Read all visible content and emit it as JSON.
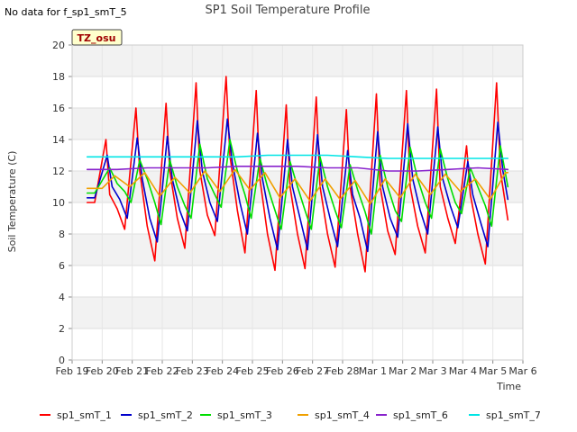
{
  "no_data_note": "No data for f_sp1_smT_5",
  "chart_data": {
    "type": "line",
    "title": "SP1 Soil Temperature Profile",
    "xlabel": "Time",
    "ylabel": "Soil Temperature (C)",
    "badge": "TZ_osu",
    "ylim": [
      0,
      20
    ],
    "yticks": [
      0,
      2,
      4,
      6,
      8,
      10,
      12,
      14,
      16,
      18,
      20
    ],
    "xlim": [
      "Feb 19",
      "Mar 6"
    ],
    "xtick_labels": [
      "Feb 19",
      "Feb 20",
      "Feb 21",
      "Feb 22",
      "Feb 23",
      "Feb 24",
      "Feb 25",
      "Feb 26",
      "Feb 27",
      "Feb 28",
      "Mar 1",
      "Mar 2",
      "Mar 3",
      "Mar 4",
      "Mar 5",
      "Mar 6"
    ],
    "grid": true,
    "legend_position": "bottom",
    "series": [
      {
        "name": "sp1_smT_1",
        "color": "#ff0000",
        "x": [
          "Feb 19 12:00",
          "Feb 19 18:00",
          "Feb 20 03:00",
          "Feb 20 06:00",
          "Feb 20 12:00",
          "Feb 20 18:00",
          "Feb 21 03:00",
          "Feb 21 06:00",
          "Feb 21 12:00",
          "Feb 21 18:00",
          "Feb 22 03:00",
          "Feb 22 06:00",
          "Feb 22 12:00",
          "Feb 22 18:00",
          "Feb 23 03:00",
          "Feb 23 06:00",
          "Feb 23 12:00",
          "Feb 23 18:00",
          "Feb 24 03:00",
          "Feb 24 06:00",
          "Feb 24 12:00",
          "Feb 24 18:00",
          "Feb 25 03:00",
          "Feb 25 06:00",
          "Feb 25 12:00",
          "Feb 25 18:00",
          "Feb 26 03:00",
          "Feb 26 06:00",
          "Feb 26 12:00",
          "Feb 26 18:00",
          "Feb 27 03:00",
          "Feb 27 06:00",
          "Feb 27 12:00",
          "Feb 27 18:00",
          "Feb 28 03:00",
          "Feb 28 06:00",
          "Feb 28 12:00",
          "Feb 28 18:00",
          "Mar 1 03:00",
          "Mar 1 06:00",
          "Mar 1 12:00",
          "Mar 1 18:00",
          "Mar 2 03:00",
          "Mar 2 06:00",
          "Mar 2 12:00",
          "Mar 2 18:00",
          "Mar 3 03:00",
          "Mar 3 06:00",
          "Mar 3 12:00",
          "Mar 3 18:00",
          "Mar 4 03:00",
          "Mar 4 06:00",
          "Mar 4 12:00",
          "Mar 4 18:00",
          "Mar 5 03:00",
          "Mar 5 06:00",
          "Mar 5 12:00"
        ],
        "y": [
          10.0,
          10.0,
          14.0,
          10.5,
          9.6,
          8.3,
          16.0,
          12.0,
          8.5,
          6.3,
          16.3,
          12.0,
          9.0,
          7.1,
          17.6,
          12.0,
          9.2,
          7.9,
          18.0,
          13.0,
          9.5,
          6.8,
          17.1,
          11.5,
          8.0,
          5.7,
          16.2,
          11.0,
          8.0,
          5.8,
          16.7,
          11.0,
          8.0,
          5.9,
          15.9,
          11.0,
          8.0,
          5.6,
          16.9,
          11.0,
          8.2,
          6.7,
          17.1,
          11.0,
          8.5,
          6.8,
          17.2,
          11.0,
          9.0,
          7.4,
          13.6,
          10.5,
          8.0,
          6.1,
          17.6,
          12.0,
          8.9
        ]
      },
      {
        "name": "sp1_smT_2",
        "color": "#0000cc",
        "x": [
          "Feb 19 12:00",
          "Feb 19 18:00",
          "Feb 20 04:00",
          "Feb 20 08:00",
          "Feb 20 14:00",
          "Feb 20 20:00",
          "Feb 21 04:00",
          "Feb 21 08:00",
          "Feb 21 14:00",
          "Feb 21 20:00",
          "Feb 22 04:00",
          "Feb 22 08:00",
          "Feb 22 14:00",
          "Feb 22 20:00",
          "Feb 23 04:00",
          "Feb 23 08:00",
          "Feb 23 14:00",
          "Feb 23 20:00",
          "Feb 24 04:00",
          "Feb 24 08:00",
          "Feb 24 14:00",
          "Feb 24 20:00",
          "Feb 25 04:00",
          "Feb 25 08:00",
          "Feb 25 14:00",
          "Feb 25 20:00",
          "Feb 26 04:00",
          "Feb 26 08:00",
          "Feb 26 14:00",
          "Feb 26 20:00",
          "Feb 27 04:00",
          "Feb 27 08:00",
          "Feb 27 14:00",
          "Feb 27 20:00",
          "Feb 28 04:00",
          "Feb 28 08:00",
          "Feb 28 14:00",
          "Feb 28 20:00",
          "Mar 1 04:00",
          "Mar 1 08:00",
          "Mar 1 14:00",
          "Mar 1 20:00",
          "Mar 2 04:00",
          "Mar 2 08:00",
          "Mar 2 14:00",
          "Mar 2 20:00",
          "Mar 3 04:00",
          "Mar 3 08:00",
          "Mar 3 14:00",
          "Mar 3 20:00",
          "Mar 4 04:00",
          "Mar 4 08:00",
          "Mar 4 14:00",
          "Mar 4 20:00",
          "Mar 5 04:00",
          "Mar 5 08:00",
          "Mar 5 12:00"
        ],
        "y": [
          10.3,
          10.3,
          13.0,
          11.0,
          10.2,
          9.0,
          14.1,
          11.5,
          9.0,
          7.5,
          14.2,
          11.5,
          9.5,
          8.2,
          15.2,
          12.0,
          10.0,
          8.8,
          15.3,
          12.5,
          10.0,
          8.0,
          14.4,
          11.5,
          9.0,
          7.0,
          14.0,
          11.0,
          9.0,
          7.0,
          14.3,
          11.0,
          9.0,
          7.2,
          13.3,
          10.5,
          9.0,
          6.9,
          14.5,
          11.0,
          9.0,
          7.8,
          15.0,
          11.5,
          9.5,
          8.0,
          14.8,
          11.5,
          9.8,
          8.4,
          12.6,
          10.5,
          8.8,
          7.2,
          15.1,
          12.0,
          10.2
        ]
      },
      {
        "name": "sp1_smT_3",
        "color": "#00dd00",
        "x": [
          "Feb 19 12:00",
          "Feb 19 18:00",
          "Feb 20 06:00",
          "Feb 20 12:00",
          "Feb 20 18:00",
          "Feb 20 23:00",
          "Feb 21 06:00",
          "Feb 21 12:00",
          "Feb 21 18:00",
          "Feb 21 23:00",
          "Feb 22 06:00",
          "Feb 22 12:00",
          "Feb 22 18:00",
          "Feb 22 23:00",
          "Feb 23 06:00",
          "Feb 23 12:00",
          "Feb 23 18:00",
          "Feb 23 23:00",
          "Feb 24 06:00",
          "Feb 24 12:00",
          "Feb 24 18:00",
          "Feb 24 23:00",
          "Feb 25 06:00",
          "Feb 25 12:00",
          "Feb 25 18:00",
          "Feb 25 23:00",
          "Feb 26 06:00",
          "Feb 26 12:00",
          "Feb 26 18:00",
          "Feb 26 23:00",
          "Feb 27 06:00",
          "Feb 27 12:00",
          "Feb 27 18:00",
          "Feb 27 23:00",
          "Feb 28 06:00",
          "Feb 28 12:00",
          "Feb 28 18:00",
          "Feb 28 23:00",
          "Mar 1 06:00",
          "Mar 1 12:00",
          "Mar 1 18:00",
          "Mar 1 23:00",
          "Mar 2 06:00",
          "Mar 2 12:00",
          "Mar 2 18:00",
          "Mar 2 23:00",
          "Mar 3 06:00",
          "Mar 3 12:00",
          "Mar 3 18:00",
          "Mar 3 23:00",
          "Mar 4 06:00",
          "Mar 4 12:00",
          "Mar 4 18:00",
          "Mar 4 23:00",
          "Mar 5 06:00",
          "Mar 5 12:00"
        ],
        "y": [
          10.6,
          10.6,
          12.2,
          11.2,
          10.7,
          10.0,
          12.7,
          11.5,
          10.0,
          8.6,
          12.7,
          11.0,
          9.8,
          9.0,
          13.7,
          11.5,
          10.5,
          9.7,
          14.0,
          12.0,
          10.5,
          9.0,
          12.8,
          11.0,
          9.5,
          8.3,
          12.6,
          11.0,
          9.5,
          8.3,
          12.9,
          11.0,
          9.5,
          8.4,
          12.4,
          10.8,
          9.4,
          8.0,
          13.0,
          11.0,
          9.5,
          8.8,
          13.5,
          11.5,
          10.0,
          9.0,
          13.4,
          11.5,
          10.0,
          9.3,
          12.2,
          11.0,
          9.8,
          8.5,
          13.6,
          11.0
        ]
      },
      {
        "name": "sp1_smT_4",
        "color": "#f0a000",
        "x": [
          "Feb 19 12:00",
          "Feb 20 00:00",
          "Feb 20 10:00",
          "Feb 20 22:00",
          "Feb 21 10:00",
          "Feb 21 22:00",
          "Feb 22 10:00",
          "Feb 22 22:00",
          "Feb 23 10:00",
          "Feb 23 22:00",
          "Feb 24 10:00",
          "Feb 24 22:00",
          "Feb 25 10:00",
          "Feb 25 22:00",
          "Feb 26 10:00",
          "Feb 26 22:00",
          "Feb 27 10:00",
          "Feb 27 22:00",
          "Feb 28 10:00",
          "Feb 28 22:00",
          "Mar 1 10:00",
          "Mar 1 22:00",
          "Mar 2 10:00",
          "Mar 2 22:00",
          "Mar 3 10:00",
          "Mar 3 22:00",
          "Mar 4 10:00",
          "Mar 4 22:00",
          "Mar 5 10:00",
          "Mar 5 12:00"
        ],
        "y": [
          10.9,
          10.9,
          11.7,
          11.0,
          11.9,
          10.4,
          11.6,
          10.6,
          12.0,
          10.7,
          12.1,
          10.8,
          11.9,
          10.3,
          11.5,
          10.1,
          11.5,
          10.2,
          11.4,
          9.9,
          11.5,
          10.3,
          11.8,
          10.5,
          11.8,
          10.7,
          11.5,
          10.2,
          11.9,
          11.9
        ]
      },
      {
        "name": "sp1_smT_6",
        "color": "#8822cc",
        "x": [
          "Feb 19 12:00",
          "Feb 20 12:00",
          "Feb 21 12:00",
          "Feb 22 12:00",
          "Feb 23 12:00",
          "Feb 24 12:00",
          "Feb 25 12:00",
          "Feb 26 12:00",
          "Feb 27 12:00",
          "Feb 28 12:00",
          "Mar 1 12:00",
          "Mar 2 12:00",
          "Mar 3 12:00",
          "Mar 4 12:00",
          "Mar 5 12:00"
        ],
        "y": [
          12.1,
          12.1,
          12.2,
          12.2,
          12.2,
          12.3,
          12.3,
          12.3,
          12.2,
          12.2,
          12.0,
          12.0,
          12.1,
          12.2,
          12.1
        ]
      },
      {
        "name": "sp1_smT_7",
        "color": "#00e5e5",
        "x": [
          "Feb 19 12:00",
          "Feb 20 12:00",
          "Feb 21 12:00",
          "Feb 22 12:00",
          "Feb 23 12:00",
          "Feb 24 12:00",
          "Feb 25 12:00",
          "Feb 26 12:00",
          "Feb 27 12:00",
          "Feb 28 12:00",
          "Mar 1 12:00",
          "Mar 2 12:00",
          "Mar 3 12:00",
          "Mar 4 12:00",
          "Mar 5 12:00"
        ],
        "y": [
          12.9,
          12.9,
          12.9,
          12.9,
          12.9,
          12.9,
          13.0,
          13.0,
          13.0,
          12.9,
          12.8,
          12.8,
          12.8,
          12.8,
          12.8
        ]
      }
    ]
  }
}
